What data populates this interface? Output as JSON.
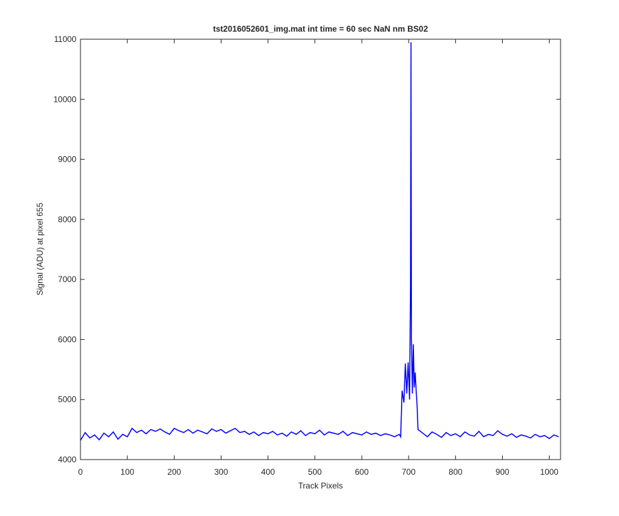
{
  "chart_data": {
    "type": "line",
    "title": "tst2016052601_img.mat int time = 60 sec  NaN nm BS02",
    "x_label": "Track Pixels",
    "y_label": "Signal (ADU) at pixel 655",
    "xlim": [
      0,
      1024
    ],
    "ylim": [
      4000,
      11000
    ],
    "xticks": [
      0,
      100,
      200,
      300,
      400,
      500,
      600,
      700,
      800,
      900,
      1000
    ],
    "yticks": [
      4000,
      5000,
      6000,
      7000,
      8000,
      9000,
      10000,
      11000
    ],
    "series": [
      {
        "color": "#0000ff",
        "x": [
          0,
          10,
          20,
          30,
          40,
          50,
          60,
          70,
          80,
          90,
          100,
          110,
          120,
          130,
          140,
          150,
          160,
          170,
          180,
          190,
          200,
          210,
          220,
          230,
          240,
          250,
          260,
          270,
          280,
          290,
          300,
          310,
          320,
          330,
          340,
          350,
          360,
          370,
          380,
          390,
          400,
          410,
          420,
          430,
          440,
          450,
          460,
          470,
          480,
          490,
          500,
          510,
          520,
          530,
          540,
          550,
          560,
          570,
          580,
          590,
          600,
          610,
          620,
          630,
          640,
          650,
          660,
          670,
          680,
          683,
          686,
          690,
          693,
          696,
          699,
          702,
          704,
          705,
          706,
          708,
          710,
          712,
          714,
          716,
          718,
          720,
          730,
          740,
          750,
          760,
          770,
          780,
          790,
          800,
          810,
          820,
          830,
          840,
          850,
          860,
          870,
          880,
          890,
          900,
          910,
          920,
          930,
          940,
          950,
          960,
          970,
          980,
          990,
          1000,
          1010,
          1020
        ],
        "values": [
          4320,
          4450,
          4360,
          4410,
          4330,
          4440,
          4380,
          4460,
          4340,
          4420,
          4380,
          4520,
          4450,
          4490,
          4430,
          4500,
          4470,
          4510,
          4460,
          4420,
          4520,
          4480,
          4450,
          4500,
          4440,
          4490,
          4460,
          4430,
          4510,
          4470,
          4500,
          4440,
          4480,
          4520,
          4450,
          4470,
          4420,
          4460,
          4400,
          4450,
          4430,
          4470,
          4410,
          4440,
          4390,
          4460,
          4420,
          4480,
          4400,
          4450,
          4430,
          4490,
          4410,
          4460,
          4440,
          4420,
          4470,
          4400,
          4450,
          4430,
          4410,
          4460,
          4420,
          4440,
          4400,
          4430,
          4410,
          4380,
          4420,
          4380,
          5150,
          4950,
          5600,
          5100,
          5620,
          5000,
          6900,
          10950,
          6000,
          5100,
          5920,
          5200,
          5450,
          5150,
          4900,
          4500,
          4440,
          4380,
          4460,
          4420,
          4370,
          4450,
          4400,
          4430,
          4380,
          4460,
          4410,
          4390,
          4470,
          4380,
          4420,
          4400,
          4480,
          4420,
          4390,
          4430,
          4370,
          4410,
          4390,
          4360,
          4420,
          4380,
          4400,
          4350,
          4410,
          4380
        ]
      }
    ]
  }
}
